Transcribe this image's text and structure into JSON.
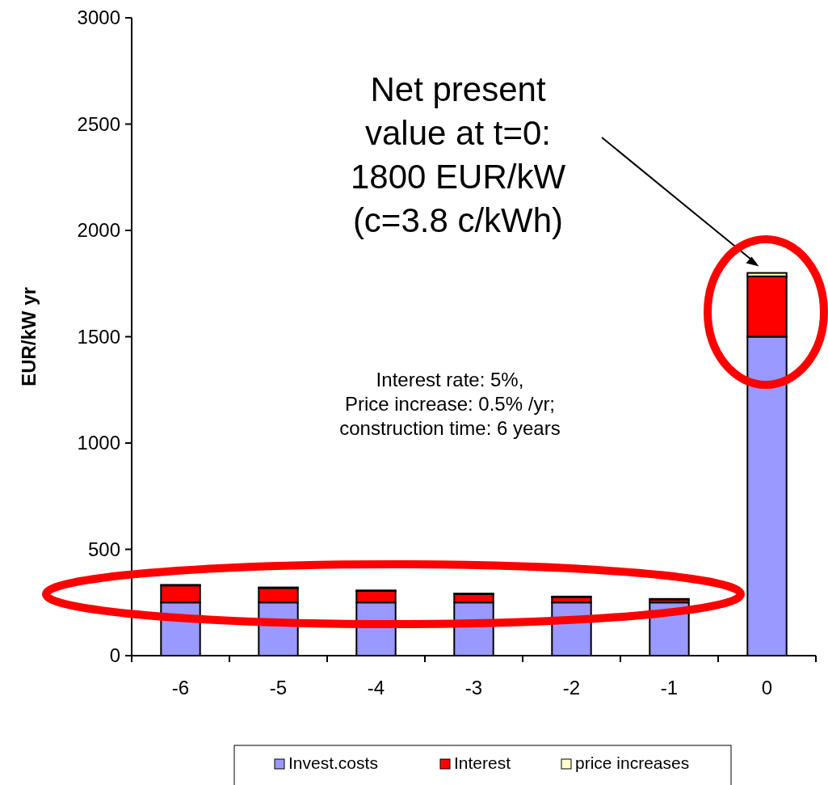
{
  "chart_data": {
    "type": "bar",
    "stacked": true,
    "ylabel": "EUR/kW yr",
    "categories": [
      "-6",
      "-5",
      "-4",
      "-3",
      "-2",
      "-1",
      "0"
    ],
    "series": [
      {
        "name": "Invest.costs",
        "color": "#9999ff",
        "values": [
          250,
          250,
          250,
          250,
          250,
          250,
          1500
        ]
      },
      {
        "name": "Interest",
        "color": "#ff0000",
        "values": [
          80,
          68,
          54,
          39,
          25,
          14,
          284
        ]
      },
      {
        "name": "price increases",
        "color": "#ffffcc",
        "values": [
          3,
          3,
          3,
          3,
          3,
          3,
          16
        ]
      }
    ],
    "ylim": [
      0,
      3000
    ],
    "yticks": [
      0,
      500,
      1000,
      1500,
      2000,
      2500,
      3000
    ],
    "grid": false,
    "legend": "bottom",
    "annotations": [
      "Net present value at t=0: 1800 EUR/kW (c=3.8 c/kWh)",
      "Interest rate: 5%, Price increase: 0.5% /yr; construction time: 6 years"
    ]
  }
}
